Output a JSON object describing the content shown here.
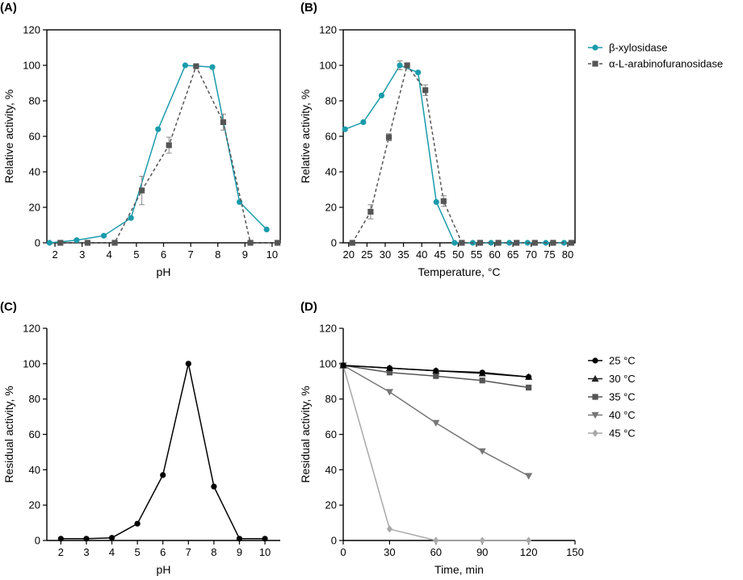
{
  "chart_data": [
    {
      "id": "A",
      "panel_label": "(A)",
      "type": "line",
      "xlabel": "pH",
      "ylabel": "Relative activity, %",
      "xlim": [
        1.7,
        10.3
      ],
      "ylim": [
        0,
        120
      ],
      "xticks": [
        2,
        3,
        4,
        5,
        6,
        7,
        8,
        9,
        10
      ],
      "yticks": [
        0,
        20,
        40,
        60,
        80,
        100,
        120
      ],
      "series": [
        {
          "name": "β-xylosidase",
          "color": "#1a9bab",
          "marker": "circle",
          "dashed": false,
          "x": [
            1.8,
            2.8,
            3.8,
            4.8,
            5.8,
            6.8,
            7.8,
            8.8,
            9.8
          ],
          "y": [
            0,
            1.5,
            4,
            14,
            64,
            100,
            99,
            23,
            7.5
          ],
          "err": [
            0,
            0,
            0,
            0,
            0,
            0,
            0,
            0,
            0
          ]
        },
        {
          "name": "α-L-arabinofuranosidase",
          "color": "#555555",
          "marker": "square",
          "dashed": true,
          "x": [
            2.2,
            3.2,
            4.2,
            5.2,
            6.2,
            7.2,
            8.2,
            9.2,
            10.2
          ],
          "y": [
            0,
            0,
            0,
            29.5,
            55,
            99.5,
            68,
            0,
            0
          ],
          "err": [
            0,
            0,
            0,
            8,
            4.5,
            1,
            4.5,
            0,
            0
          ]
        }
      ]
    },
    {
      "id": "B",
      "panel_label": "(B)",
      "type": "line",
      "xlabel": "Temperature, °C",
      "ylabel": "Relative activity, %",
      "xlim": [
        18.5,
        82
      ],
      "ylim": [
        0,
        120
      ],
      "xticks": [
        20,
        25,
        30,
        35,
        40,
        45,
        50,
        55,
        60,
        65,
        70,
        75,
        80
      ],
      "yticks": [
        0,
        20,
        40,
        60,
        80,
        100,
        120
      ],
      "legend": [
        {
          "label": "β-xylosidase",
          "color": "#1a9bab",
          "marker": "circle",
          "dashed": false
        },
        {
          "label": "α-L-arabinofuranosidase",
          "color": "#555555",
          "marker": "square",
          "dashed": true
        }
      ],
      "series": [
        {
          "name": "β-xylosidase",
          "color": "#1a9bab",
          "marker": "circle",
          "dashed": false,
          "x": [
            19,
            24,
            29,
            34,
            39,
            44,
            49,
            54,
            59,
            64,
            69,
            74,
            79
          ],
          "y": [
            64,
            68,
            83,
            100,
            96,
            23,
            0,
            0,
            0,
            0,
            0,
            0,
            0
          ],
          "err": [
            0,
            0,
            0,
            2.5,
            0,
            0,
            0,
            0,
            0,
            0,
            0,
            0,
            0
          ]
        },
        {
          "name": "α-L-arabinofuranosidase",
          "color": "#555555",
          "marker": "square",
          "dashed": true,
          "x": [
            21,
            26,
            31,
            36,
            41,
            46,
            51,
            56,
            61,
            66,
            71,
            76,
            81
          ],
          "y": [
            0,
            17.5,
            59.5,
            100,
            86,
            23.5,
            0,
            0,
            0,
            0,
            0,
            0,
            0
          ],
          "err": [
            0,
            4,
            2,
            0.5,
            3,
            3,
            0,
            0,
            0,
            0,
            0,
            0,
            0
          ]
        }
      ]
    },
    {
      "id": "C",
      "panel_label": "(C)",
      "type": "line",
      "xlabel": "pH",
      "ylabel": "Residual activity, %",
      "xlim": [
        1.45,
        10.6
      ],
      "ylim": [
        0,
        120
      ],
      "xticks": [
        2,
        3,
        4,
        5,
        6,
        7,
        8,
        9,
        10
      ],
      "yticks": [
        0,
        20,
        40,
        60,
        80,
        100,
        120
      ],
      "series": [
        {
          "name": "Residual activity",
          "color": "#000000",
          "marker": "circle",
          "dashed": false,
          "x": [
            2,
            3,
            4,
            5,
            6,
            7,
            8,
            9,
            10
          ],
          "y": [
            1,
            1,
            1.5,
            9.5,
            37,
            100,
            30.5,
            1,
            1
          ],
          "err": [
            0,
            0,
            0,
            0,
            0,
            0,
            0,
            0,
            0
          ]
        }
      ]
    },
    {
      "id": "D",
      "panel_label": "(D)",
      "type": "line",
      "xlabel": "Time, min",
      "ylabel": "Residual activity, %",
      "xlim": [
        0,
        150
      ],
      "ylim": [
        0,
        120
      ],
      "xticks": [
        0,
        30,
        60,
        90,
        120,
        150
      ],
      "yticks": [
        0,
        20,
        40,
        60,
        80,
        100,
        120
      ],
      "legend": [
        {
          "label": "25 °C",
          "color": "#000000",
          "marker": "circle",
          "dashed": false
        },
        {
          "label": "30 °C",
          "color": "#222222",
          "marker": "triangle-up",
          "dashed": false
        },
        {
          "label": "35 °C",
          "color": "#555555",
          "marker": "square",
          "dashed": false
        },
        {
          "label": "40 °C",
          "color": "#777777",
          "marker": "triangle-down",
          "dashed": false
        },
        {
          "label": "45 °C",
          "color": "#a8a8a8",
          "marker": "diamond",
          "dashed": false
        }
      ],
      "series": [
        {
          "name": "45 °C",
          "color": "#a8a8a8",
          "marker": "diamond",
          "dashed": false,
          "x": [
            0,
            30,
            60,
            90,
            120
          ],
          "y": [
            99,
            6.5,
            0,
            0,
            0
          ],
          "err": [
            0,
            0,
            0,
            0,
            0
          ]
        },
        {
          "name": "40 °C",
          "color": "#777777",
          "marker": "triangle-down",
          "dashed": false,
          "x": [
            0,
            30,
            60,
            90,
            120
          ],
          "y": [
            99,
            84,
            66.5,
            50.5,
            36.5
          ],
          "err": [
            0,
            0,
            0,
            0,
            0
          ]
        },
        {
          "name": "35 °C",
          "color": "#555555",
          "marker": "square",
          "dashed": false,
          "x": [
            0,
            30,
            60,
            90,
            120
          ],
          "y": [
            99,
            95,
            93,
            90.5,
            86.5
          ],
          "err": [
            0,
            0,
            0,
            0,
            0
          ]
        },
        {
          "name": "30 °C",
          "color": "#222222",
          "marker": "triangle-up",
          "dashed": false,
          "x": [
            0,
            30,
            60,
            90,
            120
          ],
          "y": [
            99,
            97.5,
            96,
            94.5,
            92.5
          ],
          "err": [
            0,
            0,
            0,
            0,
            0
          ]
        },
        {
          "name": "25 °C",
          "color": "#000000",
          "marker": "circle",
          "dashed": false,
          "x": [
            0,
            30,
            60,
            90,
            120
          ],
          "y": [
            99,
            97.5,
            96,
            95,
            92.5
          ],
          "err": [
            0,
            0,
            0,
            0,
            0
          ]
        }
      ]
    }
  ]
}
